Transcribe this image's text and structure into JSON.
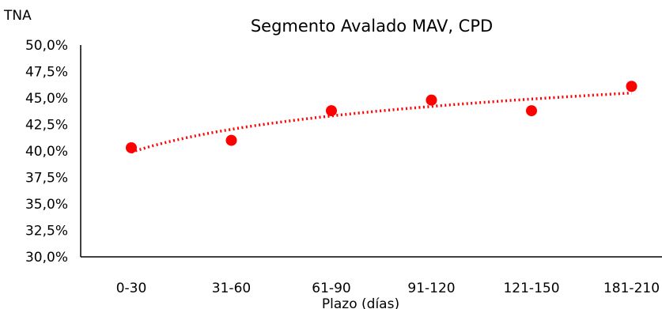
{
  "chart_data": {
    "type": "scatter",
    "title": "Segmento Avalado MAV, CPD",
    "ylabel": "TNA",
    "xlabel": "Plazo (días)",
    "categories": [
      "0-30",
      "31-60",
      "61-90",
      "91-120",
      "121-150",
      "181-210"
    ],
    "ylim": [
      30,
      50
    ],
    "yticks": [
      50,
      47.5,
      45,
      42.5,
      40,
      37.5,
      35,
      32.5,
      30
    ],
    "ytick_labels": [
      "50,0%",
      "47,5%",
      "45,0%",
      "42,5%",
      "40,0%",
      "37,5%",
      "35,0%",
      "32,5%",
      "30,0%"
    ],
    "series": [
      {
        "values": [
          40.3,
          41.0,
          43.8,
          44.8,
          43.8,
          46.1
        ],
        "color": "#ff0000"
      }
    ],
    "trendline": {
      "style": "dotted",
      "color": "#ff0000",
      "type": "logarithmic"
    },
    "grid": false,
    "legend": "none"
  }
}
